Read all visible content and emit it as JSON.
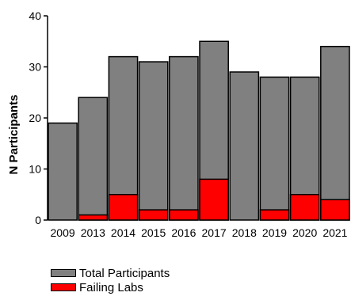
{
  "chart_data": {
    "type": "bar",
    "ylabel": "N Participants",
    "xlabel": "",
    "ylim": [
      0,
      40
    ],
    "yticks": [
      0,
      10,
      20,
      30,
      40
    ],
    "categories": [
      "2009",
      "2013",
      "2014",
      "2015",
      "2016",
      "2017",
      "2018",
      "2019",
      "2020",
      "2021"
    ],
    "series": [
      {
        "name": "Total Participants",
        "color": "#808080",
        "values": [
          19,
          24,
          32,
          31,
          32,
          35,
          29,
          28,
          28,
          34
        ]
      },
      {
        "name": "Failing Labs",
        "color": "#ff0000",
        "values": [
          0,
          1,
          5,
          2,
          2,
          8,
          0,
          2,
          5,
          4
        ]
      }
    ],
    "grid": false,
    "overlay": true,
    "legend_position": "bottom-left"
  }
}
